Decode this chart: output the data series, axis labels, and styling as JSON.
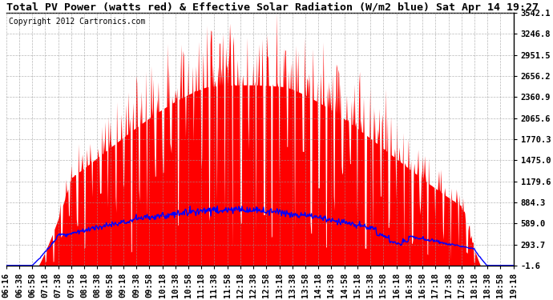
{
  "title": "Total PV Power (watts red) & Effective Solar Radiation (W/m2 blue) Sat Apr 14 19:27",
  "copyright": "Copyright 2012 Cartronics.com",
  "yticks": [
    3542.1,
    3246.8,
    2951.5,
    2656.2,
    2360.9,
    2065.6,
    1770.3,
    1475.0,
    1179.6,
    884.3,
    589.0,
    293.7,
    -1.6
  ],
  "ymin": -1.6,
  "ymax": 3542.1,
  "pv_color": "#ff0000",
  "solar_color": "#0000ff",
  "bg_color": "#ffffff",
  "grid_color": "#999999",
  "title_fontsize": 9.5,
  "copyright_fontsize": 7,
  "tick_fontsize": 7.5
}
